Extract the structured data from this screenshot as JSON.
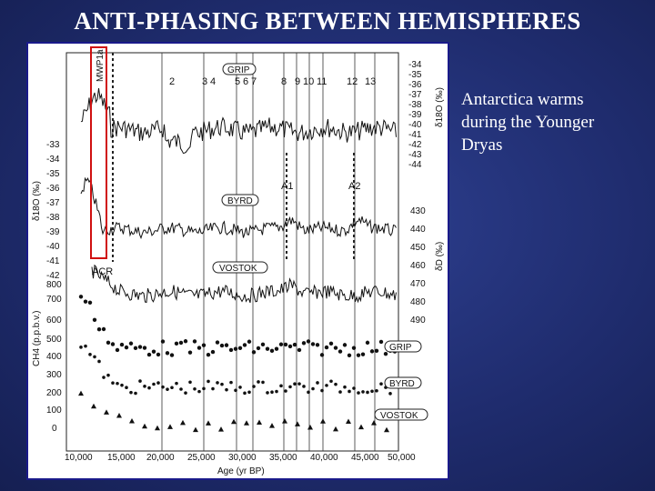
{
  "slide": {
    "title": "ANTI-PHASING BETWEEN HEMISPHERES",
    "caption_lines": [
      "Antarctica warms",
      "during the Younger",
      "Dryas"
    ]
  },
  "figure": {
    "x_axis_label": "Age (yr BP)",
    "x_ticks": [
      "10,000",
      "15,000",
      "20,000",
      "25,000",
      "30,000",
      "35,000",
      "40,000",
      "45,000",
      "50,000"
    ],
    "y_left_label": "δ18O (‰)",
    "y_left_ticks": [
      "-33",
      "-34",
      "-35",
      "-36",
      "-37",
      "-38",
      "-39",
      "-40",
      "-41",
      "-42"
    ],
    "y_left_ch4_label": "CH4 (p.p.b.v.)",
    "y_left_ch4_ticks": [
      "800",
      "700",
      "600",
      "500",
      "400",
      "300",
      "200",
      "100",
      "0"
    ],
    "y_right_label": "δ18O (‰)",
    "y_right_ticks": [
      "-34",
      "-35",
      "-36",
      "-37",
      "-38",
      "-39",
      "-40",
      "-41",
      "-42",
      "-43",
      "-44"
    ],
    "y_right_d_label": "δD (‰)",
    "y_right_d_ticks": [
      "430",
      "440",
      "450",
      "460",
      "470",
      "480",
      "490"
    ],
    "event_numbers": [
      "2",
      "3",
      "4",
      "5",
      "6",
      "7",
      "8",
      "9",
      "10",
      "11",
      "12",
      "13"
    ],
    "labels": {
      "grip": "GRIP",
      "byrd": "BYRD",
      "vostok": "VOSTOK",
      "grip_ch4": "GRIP",
      "byrd_ch4": "BYRD",
      "vostok_ch4": "VOSTOK",
      "acr": "ACR",
      "mwp": "MWP1a",
      "a1": "A1",
      "a2": "A2"
    }
  }
}
